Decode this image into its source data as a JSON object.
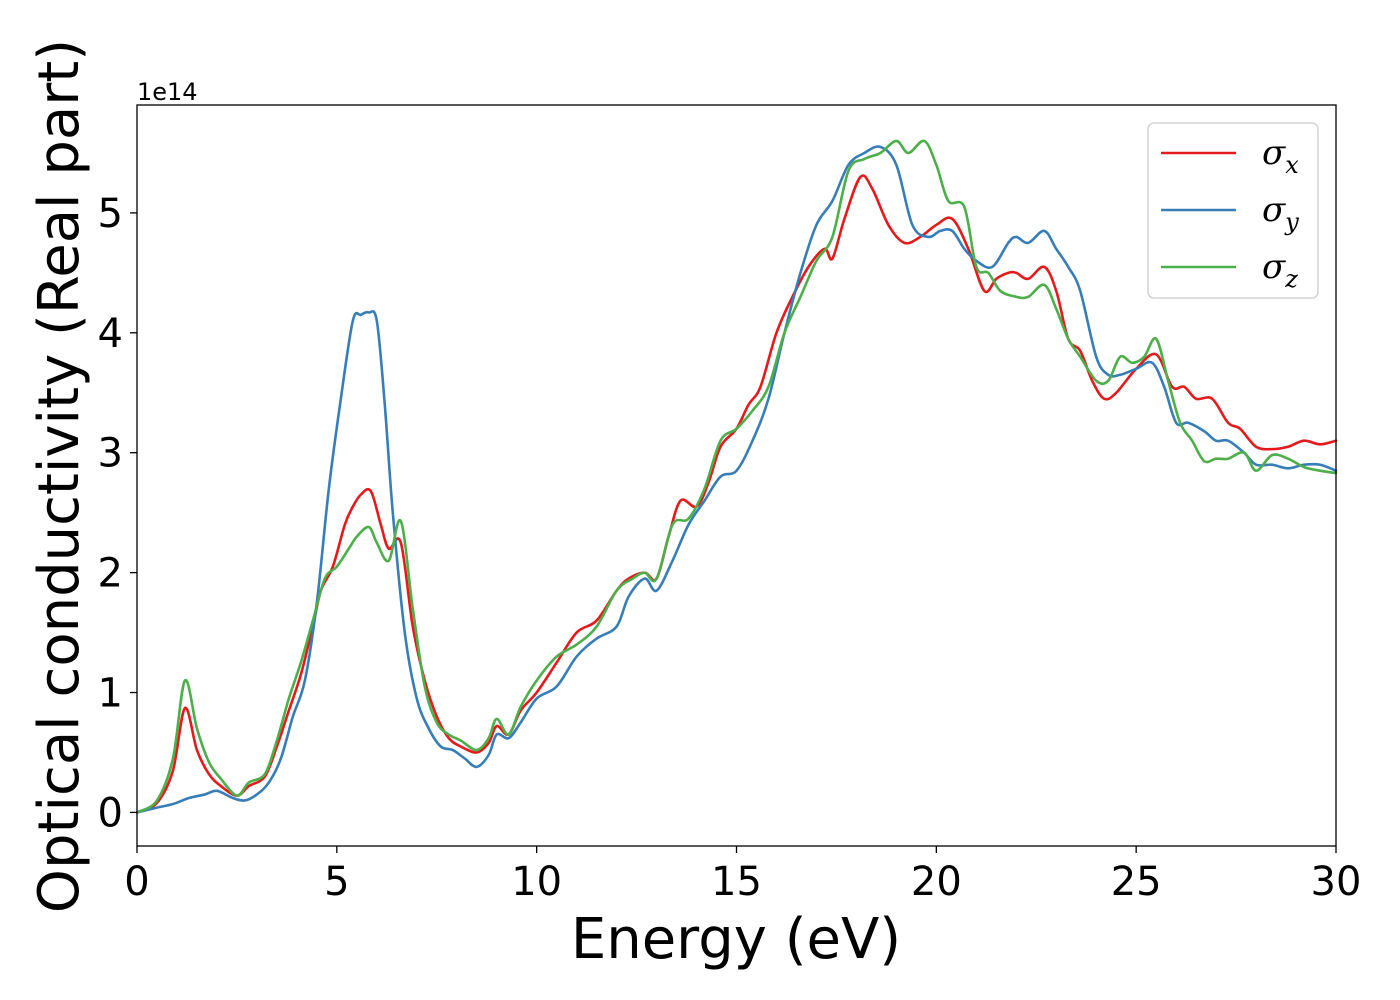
{
  "chart_data": {
    "type": "line",
    "title": "",
    "xlabel": "Energy (eV)",
    "ylabel": "Optical conductivity (Real part)",
    "y_offset_text": "1e14",
    "xlim": [
      0,
      30
    ],
    "ylim": [
      -0.28,
      5.9
    ],
    "xticks": [
      0,
      5,
      10,
      15,
      20,
      25,
      30
    ],
    "yticks": [
      0,
      1,
      2,
      3,
      4,
      5
    ],
    "grid": false,
    "legend_position": "top-right",
    "series": [
      {
        "name": "σx",
        "symbol": "σ",
        "subscript": "x",
        "color": "#e41a1c",
        "x": [
          0,
          0.5,
          0.9,
          1.2,
          1.5,
          1.8,
          2.1,
          2.5,
          2.8,
          3.2,
          3.5,
          3.8,
          4.1,
          4.4,
          4.6,
          4.9,
          5.2,
          5.4,
          5.6,
          5.85,
          6.1,
          6.3,
          6.6,
          6.9,
          7.2,
          7.5,
          7.8,
          8.1,
          8.5,
          8.8,
          9.0,
          9.3,
          9.6,
          10.0,
          10.5,
          11.0,
          11.5,
          12.0,
          12.3,
          12.7,
          13.0,
          13.3,
          13.6,
          14.0,
          14.3,
          14.6,
          15.0,
          15.3,
          15.6,
          16.0,
          16.4,
          16.8,
          17.2,
          17.4,
          17.7,
          18.1,
          18.4,
          18.8,
          19.2,
          19.6,
          20.0,
          20.4,
          20.8,
          21.2,
          21.5,
          21.8,
          22.0,
          22.3,
          22.7,
          23.0,
          23.3,
          23.6,
          23.9,
          24.2,
          24.5,
          25.0,
          25.5,
          25.9,
          26.2,
          26.5,
          26.9,
          27.3,
          27.6,
          28.0,
          28.4,
          28.8,
          29.2,
          29.6,
          30.0
        ],
        "values": [
          0.0,
          0.08,
          0.35,
          0.87,
          0.52,
          0.32,
          0.22,
          0.14,
          0.22,
          0.3,
          0.55,
          0.85,
          1.15,
          1.55,
          1.85,
          2.05,
          2.4,
          2.55,
          2.65,
          2.68,
          2.4,
          2.2,
          2.25,
          1.55,
          1.1,
          0.8,
          0.62,
          0.55,
          0.5,
          0.58,
          0.72,
          0.65,
          0.85,
          1.0,
          1.25,
          1.5,
          1.6,
          1.85,
          1.95,
          2.0,
          1.95,
          2.3,
          2.6,
          2.55,
          2.75,
          3.05,
          3.2,
          3.4,
          3.55,
          4.0,
          4.3,
          4.55,
          4.7,
          4.62,
          4.95,
          5.3,
          5.2,
          4.9,
          4.75,
          4.8,
          4.9,
          4.95,
          4.7,
          4.35,
          4.45,
          4.5,
          4.5,
          4.45,
          4.55,
          4.35,
          3.95,
          3.85,
          3.6,
          3.45,
          3.5,
          3.7,
          3.82,
          3.55,
          3.55,
          3.45,
          3.45,
          3.25,
          3.2,
          3.05,
          3.03,
          3.05,
          3.1,
          3.07,
          3.1
        ]
      },
      {
        "name": "σy",
        "symbol": "σ",
        "subscript": "y",
        "color": "#377eb8",
        "x": [
          0,
          0.5,
          0.9,
          1.3,
          1.7,
          2.0,
          2.4,
          2.7,
          3.0,
          3.3,
          3.6,
          3.9,
          4.2,
          4.5,
          4.8,
          5.1,
          5.4,
          5.6,
          5.8,
          6.0,
          6.2,
          6.4,
          6.7,
          7.0,
          7.3,
          7.6,
          7.9,
          8.2,
          8.5,
          8.8,
          9.0,
          9.3,
          9.6,
          10.0,
          10.5,
          11.0,
          11.5,
          12.0,
          12.3,
          12.7,
          13.0,
          13.4,
          13.8,
          14.2,
          14.6,
          15.0,
          15.4,
          15.8,
          16.2,
          16.6,
          17.0,
          17.4,
          17.8,
          18.2,
          18.6,
          19.0,
          19.4,
          19.8,
          20.1,
          20.4,
          20.7,
          21.0,
          21.4,
          21.8,
          22.0,
          22.3,
          22.7,
          23.0,
          23.3,
          23.6,
          24.0,
          24.3,
          24.6,
          25.0,
          25.4,
          25.7,
          26.0,
          26.3,
          26.7,
          27.0,
          27.3,
          27.7,
          28.0,
          28.4,
          28.8,
          29.2,
          29.6,
          30.0
        ],
        "values": [
          0.0,
          0.04,
          0.07,
          0.12,
          0.15,
          0.18,
          0.12,
          0.1,
          0.15,
          0.25,
          0.45,
          0.8,
          1.1,
          1.75,
          2.7,
          3.45,
          4.1,
          4.15,
          4.17,
          4.1,
          3.4,
          2.5,
          1.5,
          0.95,
          0.7,
          0.55,
          0.52,
          0.45,
          0.38,
          0.48,
          0.65,
          0.62,
          0.75,
          0.95,
          1.05,
          1.3,
          1.45,
          1.55,
          1.8,
          1.95,
          1.85,
          2.1,
          2.4,
          2.6,
          2.8,
          2.85,
          3.1,
          3.45,
          4.0,
          4.5,
          4.9,
          5.1,
          5.4,
          5.5,
          5.55,
          5.4,
          4.9,
          4.8,
          4.85,
          4.85,
          4.7,
          4.6,
          4.55,
          4.75,
          4.8,
          4.75,
          4.85,
          4.7,
          4.55,
          4.35,
          3.8,
          3.65,
          3.65,
          3.7,
          3.75,
          3.55,
          3.25,
          3.25,
          3.18,
          3.1,
          3.1,
          3.0,
          2.9,
          2.9,
          2.87,
          2.9,
          2.9,
          2.85
        ]
      },
      {
        "name": "σz",
        "symbol": "σ",
        "subscript": "z",
        "color": "#4daf4a",
        "x": [
          0,
          0.5,
          0.9,
          1.2,
          1.5,
          1.8,
          2.1,
          2.5,
          2.8,
          3.2,
          3.5,
          3.8,
          4.1,
          4.4,
          4.7,
          5.0,
          5.3,
          5.5,
          5.8,
          6.0,
          6.3,
          6.6,
          6.9,
          7.2,
          7.5,
          7.8,
          8.1,
          8.5,
          8.8,
          9.0,
          9.3,
          9.6,
          10.0,
          10.5,
          11.0,
          11.5,
          12.0,
          12.4,
          12.7,
          13.0,
          13.4,
          13.8,
          14.2,
          14.6,
          15.0,
          15.4,
          15.8,
          16.2,
          16.6,
          17.0,
          17.4,
          17.8,
          18.2,
          18.6,
          19.0,
          19.3,
          19.7,
          20.0,
          20.3,
          20.7,
          21.0,
          21.3,
          21.6,
          22.0,
          22.3,
          22.7,
          23.0,
          23.3,
          23.6,
          24.0,
          24.3,
          24.6,
          24.9,
          25.2,
          25.5,
          25.8,
          26.1,
          26.4,
          26.7,
          27.0,
          27.3,
          27.7,
          28.0,
          28.4,
          28.8,
          29.2,
          29.6,
          30.0
        ],
        "values": [
          0.0,
          0.1,
          0.45,
          1.1,
          0.7,
          0.42,
          0.28,
          0.14,
          0.25,
          0.32,
          0.6,
          0.95,
          1.25,
          1.6,
          1.95,
          2.05,
          2.2,
          2.3,
          2.38,
          2.25,
          2.1,
          2.43,
          1.7,
          1.05,
          0.75,
          0.65,
          0.6,
          0.52,
          0.62,
          0.78,
          0.65,
          0.88,
          1.1,
          1.3,
          1.4,
          1.55,
          1.85,
          1.95,
          2.0,
          1.95,
          2.4,
          2.45,
          2.7,
          3.1,
          3.2,
          3.35,
          3.55,
          4.0,
          4.3,
          4.6,
          4.8,
          5.35,
          5.45,
          5.5,
          5.6,
          5.5,
          5.6,
          5.4,
          5.1,
          5.05,
          4.55,
          4.5,
          4.35,
          4.3,
          4.3,
          4.4,
          4.2,
          3.95,
          3.8,
          3.6,
          3.6,
          3.8,
          3.75,
          3.8,
          3.95,
          3.6,
          3.25,
          3.1,
          2.93,
          2.95,
          2.95,
          3.0,
          2.85,
          2.98,
          2.95,
          2.88,
          2.85,
          2.83
        ]
      }
    ]
  }
}
